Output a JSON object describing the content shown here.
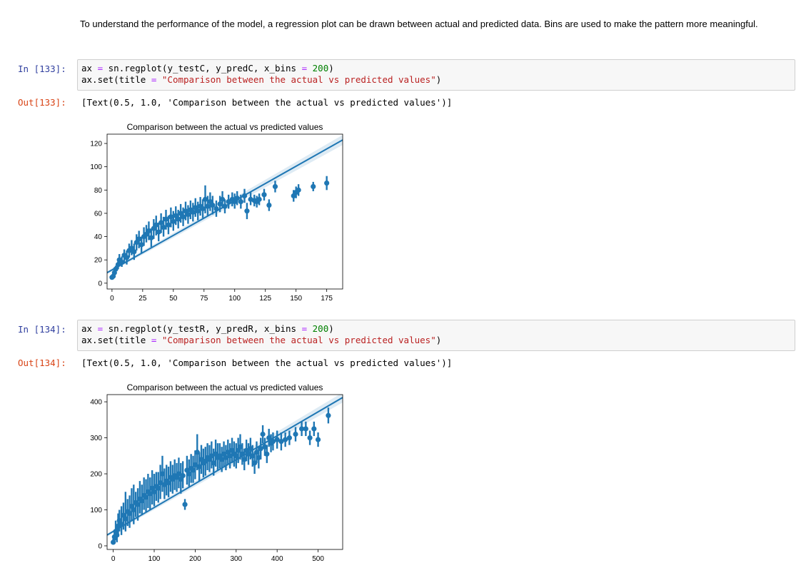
{
  "markdown": {
    "text": "To understand the performance of the model, a regression plot can be drawn between actual and predicted data. Bins are used to make the pattern more meaningful."
  },
  "cells": [
    {
      "in_prompt": "In [133]:",
      "code_line1": {
        "var": "ax",
        "eq": "=",
        "call": "sn.regplot(y_testC, y_predC, x_bins",
        "eq2": "=",
        "num": "200",
        "close": ")"
      },
      "code_line2": {
        "pre": "ax.set(title",
        "eq": "=",
        "str": "\"Comparison between the actual vs predicted values\"",
        "close": ")"
      },
      "out_prompt": "Out[133]:",
      "output": "[Text(0.5, 1.0, 'Comparison between the actual vs predicted values')]"
    },
    {
      "in_prompt": "In [134]:",
      "code_line1": {
        "var": "ax",
        "eq": "=",
        "call": "sn.regplot(y_testR, y_predR, x_bins",
        "eq2": "=",
        "num": "200",
        "close": ")"
      },
      "code_line2": {
        "pre": "ax.set(title",
        "eq": "=",
        "str": "\"Comparison between the actual vs predicted values\"",
        "close": ")"
      },
      "out_prompt": "Out[134]:",
      "output": "[Text(0.5, 1.0, 'Comparison between the actual vs predicted values')]"
    }
  ],
  "chart_data": [
    {
      "type": "scatter",
      "title": "Comparison between the actual vs predicted values",
      "xlabel": "",
      "ylabel": "",
      "xlim": [
        -4,
        188
      ],
      "ylim": [
        -5,
        128
      ],
      "xticks": [
        0,
        25,
        50,
        75,
        100,
        125,
        150,
        175
      ],
      "yticks": [
        0,
        20,
        40,
        60,
        80,
        100,
        120
      ],
      "grid": false,
      "color": "#1f77b4",
      "regression": {
        "x": [
          -4,
          188
        ],
        "y": [
          9,
          123
        ]
      },
      "points": [
        {
          "x": 0,
          "y": 5,
          "lo": 4,
          "hi": 6
        },
        {
          "x": 1,
          "y": 6,
          "lo": 5,
          "hi": 7
        },
        {
          "x": 2,
          "y": 9,
          "lo": 7,
          "hi": 11
        },
        {
          "x": 3,
          "y": 12,
          "lo": 9,
          "hi": 15
        },
        {
          "x": 5,
          "y": 16,
          "lo": 12,
          "hi": 20
        },
        {
          "x": 6,
          "y": 20,
          "lo": 15,
          "hi": 25
        },
        {
          "x": 8,
          "y": 18,
          "lo": 14,
          "hi": 23
        },
        {
          "x": 10,
          "y": 24,
          "lo": 18,
          "hi": 29
        },
        {
          "x": 12,
          "y": 22,
          "lo": 16,
          "hi": 28
        },
        {
          "x": 14,
          "y": 28,
          "lo": 22,
          "hi": 34
        },
        {
          "x": 16,
          "y": 30,
          "lo": 24,
          "hi": 37
        },
        {
          "x": 18,
          "y": 27,
          "lo": 20,
          "hi": 34
        },
        {
          "x": 20,
          "y": 35,
          "lo": 28,
          "hi": 42
        },
        {
          "x": 22,
          "y": 38,
          "lo": 30,
          "hi": 45
        },
        {
          "x": 24,
          "y": 33,
          "lo": 26,
          "hi": 40
        },
        {
          "x": 26,
          "y": 40,
          "lo": 32,
          "hi": 48
        },
        {
          "x": 28,
          "y": 42,
          "lo": 35,
          "hi": 50
        },
        {
          "x": 30,
          "y": 45,
          "lo": 37,
          "hi": 53
        },
        {
          "x": 32,
          "y": 39,
          "lo": 31,
          "hi": 47
        },
        {
          "x": 34,
          "y": 47,
          "lo": 38,
          "hi": 55
        },
        {
          "x": 36,
          "y": 50,
          "lo": 41,
          "hi": 58
        },
        {
          "x": 38,
          "y": 44,
          "lo": 36,
          "hi": 52
        },
        {
          "x": 40,
          "y": 52,
          "lo": 43,
          "hi": 60
        },
        {
          "x": 42,
          "y": 48,
          "lo": 40,
          "hi": 57
        },
        {
          "x": 44,
          "y": 55,
          "lo": 46,
          "hi": 63
        },
        {
          "x": 46,
          "y": 50,
          "lo": 42,
          "hi": 58
        },
        {
          "x": 48,
          "y": 57,
          "lo": 48,
          "hi": 65
        },
        {
          "x": 50,
          "y": 53,
          "lo": 45,
          "hi": 62
        },
        {
          "x": 52,
          "y": 58,
          "lo": 50,
          "hi": 66
        },
        {
          "x": 54,
          "y": 55,
          "lo": 47,
          "hi": 63
        },
        {
          "x": 56,
          "y": 60,
          "lo": 52,
          "hi": 68
        },
        {
          "x": 58,
          "y": 57,
          "lo": 49,
          "hi": 65
        },
        {
          "x": 60,
          "y": 62,
          "lo": 54,
          "hi": 70
        },
        {
          "x": 62,
          "y": 59,
          "lo": 51,
          "hi": 67
        },
        {
          "x": 64,
          "y": 63,
          "lo": 55,
          "hi": 71
        },
        {
          "x": 66,
          "y": 61,
          "lo": 53,
          "hi": 69
        },
        {
          "x": 68,
          "y": 65,
          "lo": 57,
          "hi": 73
        },
        {
          "x": 70,
          "y": 62,
          "lo": 54,
          "hi": 70
        },
        {
          "x": 72,
          "y": 66,
          "lo": 58,
          "hi": 74
        },
        {
          "x": 74,
          "y": 64,
          "lo": 56,
          "hi": 72
        },
        {
          "x": 76,
          "y": 72,
          "lo": 60,
          "hi": 84
        },
        {
          "x": 78,
          "y": 66,
          "lo": 58,
          "hi": 75
        },
        {
          "x": 80,
          "y": 70,
          "lo": 62,
          "hi": 78
        },
        {
          "x": 82,
          "y": 67,
          "lo": 59,
          "hi": 75
        },
        {
          "x": 85,
          "y": 64,
          "lo": 57,
          "hi": 71
        },
        {
          "x": 88,
          "y": 68,
          "lo": 61,
          "hi": 75
        },
        {
          "x": 90,
          "y": 72,
          "lo": 65,
          "hi": 79
        },
        {
          "x": 92,
          "y": 66,
          "lo": 60,
          "hi": 72
        },
        {
          "x": 95,
          "y": 70,
          "lo": 64,
          "hi": 76
        },
        {
          "x": 98,
          "y": 72,
          "lo": 66,
          "hi": 78
        },
        {
          "x": 100,
          "y": 70,
          "lo": 64,
          "hi": 77
        },
        {
          "x": 102,
          "y": 73,
          "lo": 67,
          "hi": 79
        },
        {
          "x": 105,
          "y": 70,
          "lo": 64,
          "hi": 76
        },
        {
          "x": 108,
          "y": 75,
          "lo": 69,
          "hi": 81
        },
        {
          "x": 110,
          "y": 62,
          "lo": 55,
          "hi": 69
        },
        {
          "x": 113,
          "y": 72,
          "lo": 67,
          "hi": 78
        },
        {
          "x": 116,
          "y": 71,
          "lo": 66,
          "hi": 76
        },
        {
          "x": 118,
          "y": 70,
          "lo": 65,
          "hi": 75
        },
        {
          "x": 120,
          "y": 72,
          "lo": 67,
          "hi": 77
        },
        {
          "x": 124,
          "y": 76,
          "lo": 71,
          "hi": 81
        },
        {
          "x": 128,
          "y": 67,
          "lo": 62,
          "hi": 72
        },
        {
          "x": 133,
          "y": 83,
          "lo": 78,
          "hi": 88
        },
        {
          "x": 148,
          "y": 75,
          "lo": 70,
          "hi": 80
        },
        {
          "x": 150,
          "y": 78,
          "lo": 73,
          "hi": 83
        },
        {
          "x": 152,
          "y": 80,
          "lo": 75,
          "hi": 85
        },
        {
          "x": 164,
          "y": 83,
          "lo": 79,
          "hi": 87
        },
        {
          "x": 175,
          "y": 86,
          "lo": 80,
          "hi": 92
        }
      ]
    },
    {
      "type": "scatter",
      "title": "Comparison between the actual vs predicted values",
      "xlabel": "",
      "ylabel": "",
      "xlim": [
        -15,
        560
      ],
      "ylim": [
        -10,
        420
      ],
      "xticks": [
        0,
        100,
        200,
        300,
        400,
        500
      ],
      "yticks": [
        0,
        100,
        200,
        300,
        400
      ],
      "grid": false,
      "color": "#1f77b4",
      "regression": {
        "x": [
          -15,
          560
        ],
        "y": [
          30,
          412
        ]
      },
      "points": [
        {
          "x": 0,
          "y": 10,
          "lo": 5,
          "hi": 20
        },
        {
          "x": 3,
          "y": 25,
          "lo": 10,
          "hi": 45
        },
        {
          "x": 6,
          "y": 40,
          "lo": 15,
          "hi": 70
        },
        {
          "x": 9,
          "y": 30,
          "lo": 10,
          "hi": 60
        },
        {
          "x": 12,
          "y": 55,
          "lo": 25,
          "hi": 90
        },
        {
          "x": 15,
          "y": 70,
          "lo": 40,
          "hi": 100
        },
        {
          "x": 20,
          "y": 60,
          "lo": 30,
          "hi": 110
        },
        {
          "x": 25,
          "y": 85,
          "lo": 45,
          "hi": 120
        },
        {
          "x": 30,
          "y": 75,
          "lo": 40,
          "hi": 150
        },
        {
          "x": 35,
          "y": 95,
          "lo": 55,
          "hi": 130
        },
        {
          "x": 40,
          "y": 90,
          "lo": 50,
          "hi": 140
        },
        {
          "x": 45,
          "y": 110,
          "lo": 70,
          "hi": 160
        },
        {
          "x": 50,
          "y": 100,
          "lo": 60,
          "hi": 170
        },
        {
          "x": 55,
          "y": 120,
          "lo": 80,
          "hi": 150
        },
        {
          "x": 60,
          "y": 115,
          "lo": 70,
          "hi": 160
        },
        {
          "x": 65,
          "y": 130,
          "lo": 90,
          "hi": 180
        },
        {
          "x": 70,
          "y": 125,
          "lo": 85,
          "hi": 170
        },
        {
          "x": 75,
          "y": 140,
          "lo": 100,
          "hi": 190
        },
        {
          "x": 80,
          "y": 135,
          "lo": 95,
          "hi": 185
        },
        {
          "x": 85,
          "y": 150,
          "lo": 105,
          "hi": 200
        },
        {
          "x": 90,
          "y": 145,
          "lo": 100,
          "hi": 190
        },
        {
          "x": 95,
          "y": 160,
          "lo": 115,
          "hi": 210
        },
        {
          "x": 100,
          "y": 150,
          "lo": 110,
          "hi": 200
        },
        {
          "x": 105,
          "y": 165,
          "lo": 125,
          "hi": 205
        },
        {
          "x": 110,
          "y": 160,
          "lo": 120,
          "hi": 205
        },
        {
          "x": 115,
          "y": 175,
          "lo": 130,
          "hi": 225
        },
        {
          "x": 120,
          "y": 200,
          "lo": 150,
          "hi": 250
        },
        {
          "x": 125,
          "y": 170,
          "lo": 130,
          "hi": 215
        },
        {
          "x": 130,
          "y": 180,
          "lo": 140,
          "hi": 225
        },
        {
          "x": 135,
          "y": 175,
          "lo": 135,
          "hi": 220
        },
        {
          "x": 140,
          "y": 190,
          "lo": 150,
          "hi": 235
        },
        {
          "x": 145,
          "y": 185,
          "lo": 145,
          "hi": 225
        },
        {
          "x": 150,
          "y": 195,
          "lo": 155,
          "hi": 240
        },
        {
          "x": 155,
          "y": 190,
          "lo": 150,
          "hi": 230
        },
        {
          "x": 160,
          "y": 200,
          "lo": 160,
          "hi": 245
        },
        {
          "x": 165,
          "y": 185,
          "lo": 145,
          "hi": 230
        },
        {
          "x": 170,
          "y": 195,
          "lo": 160,
          "hi": 235
        },
        {
          "x": 175,
          "y": 115,
          "lo": 100,
          "hi": 130
        },
        {
          "x": 180,
          "y": 210,
          "lo": 170,
          "hi": 250
        },
        {
          "x": 185,
          "y": 200,
          "lo": 165,
          "hi": 240
        },
        {
          "x": 190,
          "y": 215,
          "lo": 175,
          "hi": 255
        },
        {
          "x": 195,
          "y": 210,
          "lo": 175,
          "hi": 250
        },
        {
          "x": 200,
          "y": 225,
          "lo": 185,
          "hi": 265
        },
        {
          "x": 205,
          "y": 260,
          "lo": 210,
          "hi": 310
        },
        {
          "x": 210,
          "y": 220,
          "lo": 180,
          "hi": 260
        },
        {
          "x": 215,
          "y": 240,
          "lo": 200,
          "hi": 280
        },
        {
          "x": 220,
          "y": 230,
          "lo": 190,
          "hi": 270
        },
        {
          "x": 225,
          "y": 235,
          "lo": 195,
          "hi": 275
        },
        {
          "x": 230,
          "y": 245,
          "lo": 210,
          "hi": 285
        },
        {
          "x": 235,
          "y": 240,
          "lo": 205,
          "hi": 280
        },
        {
          "x": 240,
          "y": 250,
          "lo": 215,
          "hi": 290
        },
        {
          "x": 245,
          "y": 230,
          "lo": 195,
          "hi": 270
        },
        {
          "x": 250,
          "y": 255,
          "lo": 220,
          "hi": 295
        },
        {
          "x": 255,
          "y": 245,
          "lo": 210,
          "hi": 285
        },
        {
          "x": 260,
          "y": 250,
          "lo": 215,
          "hi": 285
        },
        {
          "x": 265,
          "y": 240,
          "lo": 205,
          "hi": 275
        },
        {
          "x": 270,
          "y": 255,
          "lo": 220,
          "hi": 290
        },
        {
          "x": 275,
          "y": 245,
          "lo": 210,
          "hi": 280
        },
        {
          "x": 280,
          "y": 260,
          "lo": 225,
          "hi": 295
        },
        {
          "x": 285,
          "y": 250,
          "lo": 215,
          "hi": 285
        },
        {
          "x": 290,
          "y": 265,
          "lo": 230,
          "hi": 300
        },
        {
          "x": 295,
          "y": 255,
          "lo": 220,
          "hi": 290
        },
        {
          "x": 300,
          "y": 250,
          "lo": 215,
          "hi": 285
        },
        {
          "x": 305,
          "y": 265,
          "lo": 230,
          "hi": 300
        },
        {
          "x": 310,
          "y": 275,
          "lo": 240,
          "hi": 310
        },
        {
          "x": 315,
          "y": 255,
          "lo": 225,
          "hi": 285
        },
        {
          "x": 320,
          "y": 240,
          "lo": 210,
          "hi": 270
        },
        {
          "x": 325,
          "y": 265,
          "lo": 235,
          "hi": 295
        },
        {
          "x": 330,
          "y": 255,
          "lo": 225,
          "hi": 285
        },
        {
          "x": 335,
          "y": 270,
          "lo": 240,
          "hi": 300
        },
        {
          "x": 340,
          "y": 250,
          "lo": 220,
          "hi": 280
        },
        {
          "x": 345,
          "y": 230,
          "lo": 200,
          "hi": 260
        },
        {
          "x": 350,
          "y": 260,
          "lo": 230,
          "hi": 290
        },
        {
          "x": 355,
          "y": 245,
          "lo": 215,
          "hi": 275
        },
        {
          "x": 360,
          "y": 270,
          "lo": 240,
          "hi": 300
        },
        {
          "x": 365,
          "y": 310,
          "lo": 285,
          "hi": 335
        },
        {
          "x": 370,
          "y": 275,
          "lo": 250,
          "hi": 300
        },
        {
          "x": 375,
          "y": 255,
          "lo": 230,
          "hi": 280
        },
        {
          "x": 380,
          "y": 300,
          "lo": 275,
          "hi": 325
        },
        {
          "x": 385,
          "y": 285,
          "lo": 260,
          "hi": 310
        },
        {
          "x": 390,
          "y": 290,
          "lo": 265,
          "hi": 315
        },
        {
          "x": 400,
          "y": 295,
          "lo": 270,
          "hi": 320
        },
        {
          "x": 410,
          "y": 290,
          "lo": 265,
          "hi": 315
        },
        {
          "x": 420,
          "y": 295,
          "lo": 275,
          "hi": 315
        },
        {
          "x": 430,
          "y": 300,
          "lo": 280,
          "hi": 320
        },
        {
          "x": 445,
          "y": 310,
          "lo": 290,
          "hi": 330
        },
        {
          "x": 460,
          "y": 325,
          "lo": 305,
          "hi": 345
        },
        {
          "x": 470,
          "y": 325,
          "lo": 305,
          "hi": 345
        },
        {
          "x": 480,
          "y": 300,
          "lo": 280,
          "hi": 320
        },
        {
          "x": 490,
          "y": 325,
          "lo": 305,
          "hi": 345
        },
        {
          "x": 500,
          "y": 295,
          "lo": 275,
          "hi": 315
        },
        {
          "x": 525,
          "y": 362,
          "lo": 340,
          "hi": 384
        }
      ]
    }
  ]
}
